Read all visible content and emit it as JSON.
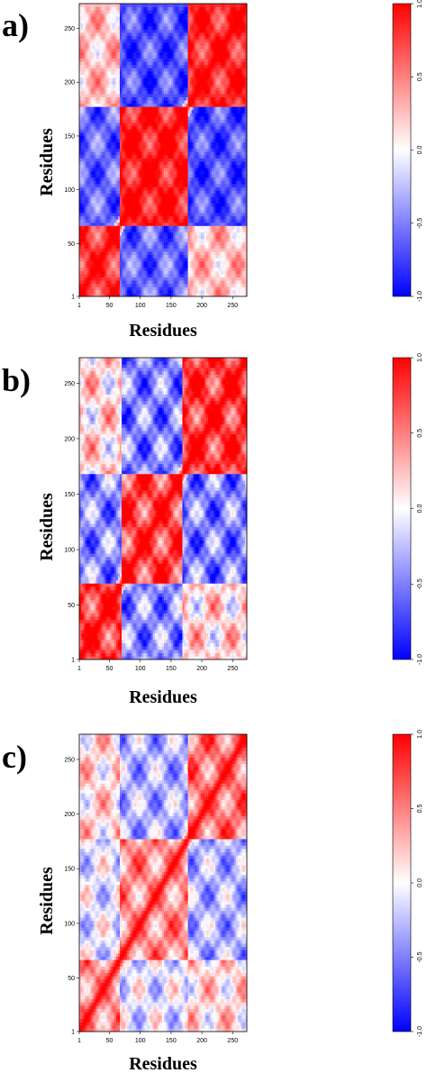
{
  "chart_data": [
    {
      "type": "heatmap",
      "panel_label": "a)",
      "xlabel": "Residues",
      "ylabel": "Residues",
      "xlim": [
        1,
        273
      ],
      "ylim": [
        1,
        273
      ],
      "x_ticks": [
        "1",
        "50",
        "100",
        "150",
        "200",
        "250"
      ],
      "y_ticks": [
        "1",
        "50",
        "100",
        "150",
        "200",
        "250"
      ],
      "colorbar": {
        "min": -1.0,
        "max": 1.0,
        "ticks": [
          "-1.0",
          "-0.5",
          "0.0",
          "0.5",
          "1.0"
        ],
        "low_color": "#0000ff",
        "mid_color": "#ffffff",
        "high_color": "#ff0000"
      },
      "domains": [
        {
          "start": 1,
          "end": 65
        },
        {
          "start": 66,
          "end": 175
        },
        {
          "start": 176,
          "end": 273
        }
      ],
      "block_correlations": [
        [
          0.8,
          -0.6,
          0.25
        ],
        [
          -0.6,
          0.9,
          -0.7
        ],
        [
          0.25,
          -0.7,
          0.85
        ]
      ],
      "pattern_strength": 0.3
    },
    {
      "type": "heatmap",
      "panel_label": "b)",
      "xlabel": "Residues",
      "ylabel": "Residues",
      "xlim": [
        1,
        273
      ],
      "ylim": [
        1,
        273
      ],
      "x_ticks": [
        "1",
        "50",
        "100",
        "150",
        "200",
        "250"
      ],
      "y_ticks": [
        "1",
        "50",
        "100",
        "150",
        "200",
        "250"
      ],
      "colorbar": {
        "min": -1.0,
        "max": 1.0,
        "ticks": [
          "-1.0",
          "-0.5",
          "0.0",
          "0.5",
          "1.0"
        ],
        "low_color": "#0000ff",
        "mid_color": "#ffffff",
        "high_color": "#ff0000"
      },
      "domains": [
        {
          "start": 1,
          "end": 68
        },
        {
          "start": 69,
          "end": 168
        },
        {
          "start": 169,
          "end": 273
        }
      ],
      "block_correlations": [
        [
          0.8,
          -0.45,
          0.15
        ],
        [
          -0.45,
          0.75,
          -0.5
        ],
        [
          0.15,
          -0.5,
          0.8
        ]
      ],
      "pattern_strength": 0.4
    },
    {
      "type": "heatmap",
      "panel_label": "c)",
      "xlabel": "Residues",
      "ylabel": "Residues",
      "xlim": [
        1,
        273
      ],
      "ylim": [
        1,
        273
      ],
      "x_ticks": [
        "1",
        "50",
        "100",
        "150",
        "200",
        "250"
      ],
      "y_ticks": [
        "1",
        "50",
        "100",
        "150",
        "200",
        "250"
      ],
      "colorbar": {
        "min": -1.0,
        "max": 1.0,
        "ticks": [
          "-1.0",
          "-0.5",
          "0.0",
          "0.5",
          "1.0"
        ],
        "low_color": "#0000ff",
        "mid_color": "#ffffff",
        "high_color": "#ff0000"
      },
      "domains": [
        {
          "start": 1,
          "end": 65
        },
        {
          "start": 66,
          "end": 175
        },
        {
          "start": 176,
          "end": 273
        }
      ],
      "block_correlations": [
        [
          0.45,
          -0.1,
          0.15
        ],
        [
          -0.1,
          0.45,
          -0.3
        ],
        [
          0.15,
          -0.3,
          0.55
        ]
      ],
      "pattern_strength": 0.35
    }
  ]
}
